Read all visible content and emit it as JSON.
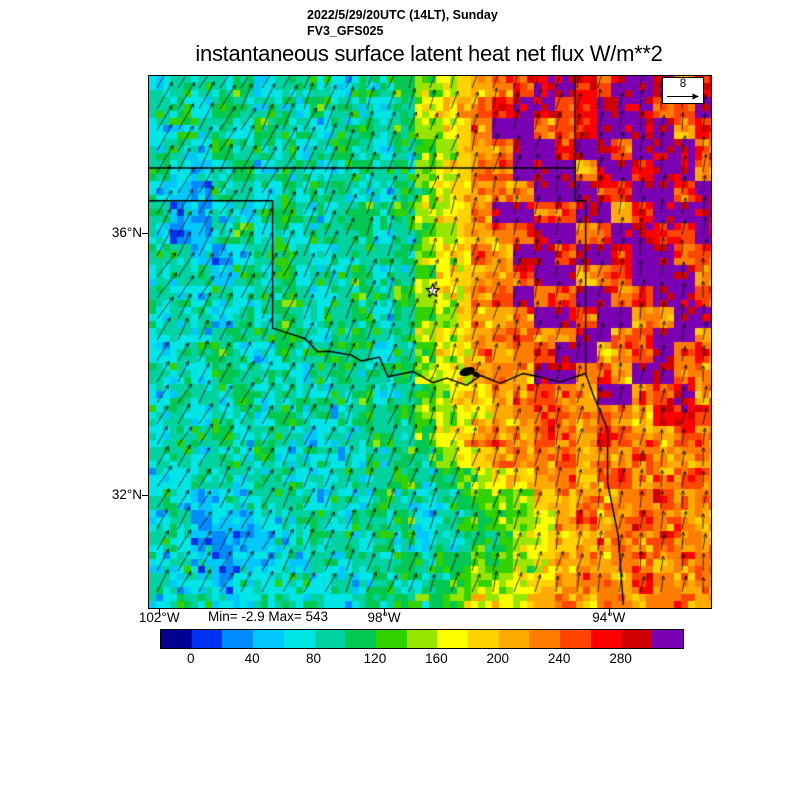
{
  "header": {
    "datetime_line": "2022/5/29/20UTC (14LT), Sunday",
    "model_line": "FV3_GFS025",
    "title": "instantaneous surface latent heat net flux W/m**2"
  },
  "map": {
    "stats_label": "Min= -2.9 Max= 543",
    "wind_ref_value": "8",
    "lat_labels": [
      {
        "text": "36°N",
        "lat": 36
      },
      {
        "text": "32°N",
        "lat": 32
      }
    ],
    "lon_labels": [
      {
        "text": "102°W",
        "lon": 102
      },
      {
        "text": "98°W",
        "lon": 98
      },
      {
        "text": "94°W",
        "lon": 94
      }
    ]
  },
  "chart_data": {
    "type": "heatmap",
    "title": "instantaneous surface latent heat net flux W/m**2",
    "model": "FV3_GFS025",
    "valid_time": "2022/5/29/20UTC (14LT), Sunday",
    "units": "W/m**2",
    "stat_min": -2.9,
    "stat_max": 543,
    "wind_reference": 8,
    "levels": [
      0,
      20,
      40,
      60,
      80,
      100,
      120,
      140,
      160,
      180,
      200,
      220,
      240,
      260,
      280,
      300
    ],
    "colors": [
      "#000091",
      "#0030f0",
      "#008cff",
      "#00c8ff",
      "#00e6e6",
      "#00d2a0",
      "#00c850",
      "#32d200",
      "#96e600",
      "#ffff00",
      "#ffd200",
      "#ffaa00",
      "#ff7d00",
      "#ff4600",
      "#ff0000",
      "#d00000",
      "#7a00b4"
    ],
    "tick_labels": [
      "0",
      "40",
      "80",
      "120",
      "160",
      "200",
      "240",
      "280"
    ],
    "lat_ticks": [
      36,
      32
    ],
    "lon_ticks": [
      102,
      98,
      94
    ],
    "extent": {
      "lon_west": 102.2,
      "lon_east": 92.2,
      "lat_north": 38.4,
      "lat_south": 30.3
    },
    "palette_chars": "0123456789abcdefg",
    "field": [
      "455564555465689abcdggedggfce",
      "55465554655459abceggdegggcdg",
      "455546554565689acggcdeggggbe",
      "554655545654578abcggeggdgggd",
      "543564554565689acdgggcggeggc",
      "432554546554579abcdgggedggdg",
      "532445654565689acggcdggbeggg",
      "423564545564578abcdggcdggedg",
      "553245654555689acbggdggeggcd",
      "455354645564579abcdggbcdgggc",
      "554545654565689acdgcdggcdggd",
      "455454645564578abbcggdggbcgg",
      "554555654565689abcdbcggcdggc",
      "455644655564579acbcdggbcdgcd",
      "554655445655689abcbggcdbggcc",
      "455564554564578aabcdcbggcdgc",
      "5545546554656789abcdcbdcbeed",
      "455645544556579abcbdcbedcbdc",
      "5545564554456689abccdbcbdccb",
      "445545544555656789abcbcdbcdc",
      "5434455545465456778abcbccdbc",
      "45233445545564566789bcbcdccb",
      "54322344554654556689abccbdcb",
      "45323344545565667789bcbccbcc",
      "544344554546556788 9abccbdcbc",
      "455445545455667899abcbccbccb"
    ],
    "borders": [
      [
        [
          38.4,
          94.62
        ],
        [
          37.0,
          94.62
        ]
      ],
      [
        [
          37.0,
          102.25
        ],
        [
          37.0,
          94.62
        ],
        [
          36.5,
          94.62
        ],
        [
          36.5,
          94.43
        ],
        [
          33.87,
          94.43
        ]
      ],
      [
        [
          33.87,
          94.43
        ],
        [
          33.74,
          94.9
        ],
        [
          33.82,
          95.25
        ],
        [
          33.87,
          95.55
        ],
        [
          33.72,
          95.95
        ],
        [
          33.84,
          96.3
        ],
        [
          33.69,
          96.55
        ],
        [
          33.8,
          96.9
        ],
        [
          33.73,
          97.15
        ],
        [
          33.9,
          97.5
        ],
        [
          33.82,
          97.95
        ],
        [
          34.12,
          98.1
        ],
        [
          34.06,
          98.42
        ],
        [
          34.15,
          98.6
        ],
        [
          34.21,
          99.0
        ],
        [
          34.2,
          99.2
        ],
        [
          34.4,
          99.42
        ],
        [
          34.45,
          99.6
        ],
        [
          34.56,
          100.0
        ],
        [
          36.5,
          100.0
        ],
        [
          36.5,
          102.25
        ]
      ],
      [
        [
          33.87,
          94.43
        ],
        [
          33.55,
          94.3
        ],
        [
          33.02,
          94.04
        ],
        [
          32.2,
          94.04
        ],
        [
          31.4,
          93.85
        ],
        [
          30.35,
          93.76
        ]
      ]
    ],
    "marker_star": {
      "lat": 35.13,
      "lon": 97.15
    },
    "lake": {
      "lat": 33.9,
      "lon": 96.54
    }
  }
}
